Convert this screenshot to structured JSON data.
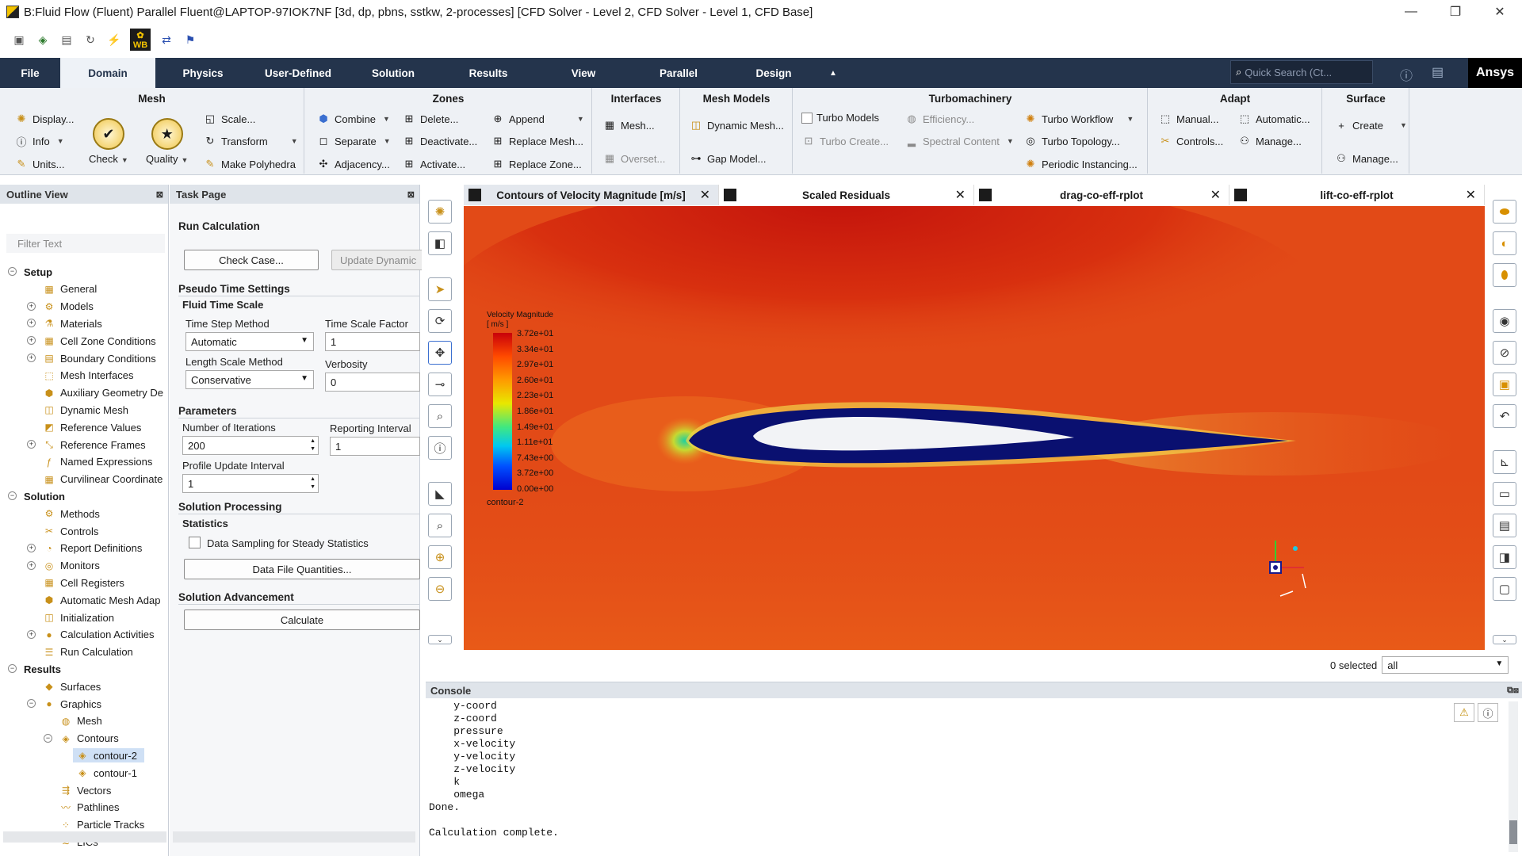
{
  "window": {
    "title": "B:Fluid Flow (Fluent) Parallel Fluent@LAPTOP-97IOK7NF  [3d, dp, pbns, sstkw, 2-processes] [CFD Solver - Level 2, CFD Solver - Level 1, CFD Base]",
    "minimize": "—",
    "restore": "❐",
    "close": "✕"
  },
  "quick_toolbar": {
    "wb_label": "WB"
  },
  "menu": {
    "tabs": [
      "File",
      "Domain",
      "Physics",
      "User-Defined",
      "Solution",
      "Results",
      "View",
      "Parallel",
      "Design"
    ],
    "active": "Domain",
    "search_placeholder": "Quick Search (Ct...",
    "brand": "Ansys"
  },
  "ribbon": {
    "mesh": {
      "title": "Mesh",
      "display": "Display...",
      "info": "Info",
      "units": "Units...",
      "check": "Check",
      "quality": "Quality",
      "scale": "Scale...",
      "transform": "Transform",
      "make_polyhedra": "Make Polyhedra"
    },
    "zones": {
      "title": "Zones",
      "combine": "Combine",
      "separate": "Separate",
      "adjacency": "Adjacency...",
      "delete": "Delete...",
      "deactivate": "Deactivate...",
      "activate": "Activate...",
      "append": "Append",
      "replace_mesh": "Replace Mesh...",
      "replace_zone": "Replace Zone..."
    },
    "interfaces": {
      "title": "Interfaces",
      "mesh": "Mesh...",
      "overset": "Overset..."
    },
    "mesh_models": {
      "title": "Mesh Models",
      "dynamic_mesh": "Dynamic Mesh...",
      "gap_model": "Gap Model..."
    },
    "turbo": {
      "title": "Turbomachinery",
      "turbo_models": "Turbo Models",
      "efficiency": "Efficiency...",
      "turbo_create": "Turbo Create...",
      "spectral_content": "Spectral Content",
      "turbo_workflow": "Turbo Workflow",
      "turbo_topology": "Turbo Topology...",
      "periodic_instancing": "Periodic Instancing..."
    },
    "adapt": {
      "title": "Adapt",
      "manual": "Manual...",
      "automatic": "Automatic...",
      "controls": "Controls...",
      "manage": "Manage..."
    },
    "surface": {
      "title": "Surface",
      "create": "Create",
      "manage": "Manage..."
    }
  },
  "outline": {
    "title": "Outline View",
    "filter_placeholder": "Filter Text",
    "items": [
      {
        "label": "Setup",
        "level": 0,
        "exp": "−",
        "bold": true,
        "icon": ""
      },
      {
        "label": "General",
        "level": 1,
        "exp": "",
        "icon": "▦"
      },
      {
        "label": "Models",
        "level": 1,
        "exp": "+",
        "icon": "⚙"
      },
      {
        "label": "Materials",
        "level": 1,
        "exp": "+",
        "icon": "⚗"
      },
      {
        "label": "Cell Zone Conditions",
        "level": 1,
        "exp": "+",
        "icon": "▦"
      },
      {
        "label": "Boundary Conditions",
        "level": 1,
        "exp": "+",
        "icon": "▤"
      },
      {
        "label": "Mesh Interfaces",
        "level": 1,
        "exp": "",
        "icon": "⬚"
      },
      {
        "label": "Auxiliary Geometry De",
        "level": 1,
        "exp": "",
        "icon": "⬢"
      },
      {
        "label": "Dynamic Mesh",
        "level": 1,
        "exp": "",
        "icon": "◫"
      },
      {
        "label": "Reference Values",
        "level": 1,
        "exp": "",
        "icon": "◩"
      },
      {
        "label": "Reference Frames",
        "level": 1,
        "exp": "+",
        "icon": "⤡"
      },
      {
        "label": "Named Expressions",
        "level": 1,
        "exp": "",
        "icon": "ƒ"
      },
      {
        "label": "Curvilinear Coordinate",
        "level": 1,
        "exp": "",
        "icon": "▦"
      },
      {
        "label": "Solution",
        "level": 0,
        "exp": "−",
        "bold": true,
        "icon": ""
      },
      {
        "label": "Methods",
        "level": 1,
        "exp": "",
        "icon": "⚙"
      },
      {
        "label": "Controls",
        "level": 1,
        "exp": "",
        "icon": "✂"
      },
      {
        "label": "Report Definitions",
        "level": 1,
        "exp": "+",
        "icon": "◔"
      },
      {
        "label": "Monitors",
        "level": 1,
        "exp": "+",
        "icon": "◎"
      },
      {
        "label": "Cell Registers",
        "level": 1,
        "exp": "",
        "icon": "▦"
      },
      {
        "label": "Automatic Mesh Adap",
        "level": 1,
        "exp": "",
        "icon": "⬢"
      },
      {
        "label": "Initialization",
        "level": 1,
        "exp": "",
        "icon": "◫"
      },
      {
        "label": "Calculation Activities",
        "level": 1,
        "exp": "+",
        "icon": "●"
      },
      {
        "label": "Run Calculation",
        "level": 1,
        "exp": "",
        "icon": "☰"
      },
      {
        "label": "Results",
        "level": 0,
        "exp": "−",
        "bold": true,
        "icon": ""
      },
      {
        "label": "Surfaces",
        "level": 1,
        "exp": "",
        "icon": "◆"
      },
      {
        "label": "Graphics",
        "level": 1,
        "exp": "−",
        "icon": "●"
      },
      {
        "label": "Mesh",
        "level": 2,
        "exp": "",
        "icon": "◍"
      },
      {
        "label": "Contours",
        "level": 2,
        "exp": "−",
        "icon": "◈"
      },
      {
        "label": "contour-2",
        "level": 3,
        "exp": "",
        "icon": "◈",
        "selected": true
      },
      {
        "label": "contour-1",
        "level": 3,
        "exp": "",
        "icon": "◈"
      },
      {
        "label": "Vectors",
        "level": 2,
        "exp": "",
        "icon": "⇶"
      },
      {
        "label": "Pathlines",
        "level": 2,
        "exp": "",
        "icon": "〰"
      },
      {
        "label": "Particle Tracks",
        "level": 2,
        "exp": "",
        "icon": "⁘"
      },
      {
        "label": "LICs",
        "level": 2,
        "exp": "",
        "icon": "≋"
      }
    ]
  },
  "task": {
    "title": "Task Page",
    "heading": "Run Calculation",
    "check_case": "Check Case...",
    "update_dynamic": "Update Dynamic",
    "pseudo_time": "Pseudo Time Settings",
    "fluid_time_scale": "Fluid Time Scale",
    "time_step_method_label": "Time Step Method",
    "time_step_method": "Automatic",
    "time_scale_factor_label": "Time Scale Factor",
    "time_scale_factor": "1",
    "length_scale_label": "Length Scale Method",
    "length_scale": "Conservative",
    "verbosity_label": "Verbosity",
    "verbosity": "0",
    "parameters": "Parameters",
    "iterations_label": "Number of Iterations",
    "iterations": "200",
    "reporting_label": "Reporting Interval",
    "reporting": "1",
    "profile_label": "Profile Update Interval",
    "profile": "1",
    "solution_processing": "Solution Processing",
    "statistics": "Statistics",
    "data_sampling": "Data Sampling for Steady Statistics",
    "data_file_quantities": "Data File Quantities...",
    "solution_advancement": "Solution Advancement",
    "calculate": "Calculate"
  },
  "graphics_tabs": [
    {
      "label": "Contours of Velocity Magnitude [m/s]",
      "active": true
    },
    {
      "label": "Scaled Residuals",
      "active": false
    },
    {
      "label": "drag-co-eff-rplot",
      "active": false
    },
    {
      "label": "lift-co-eff-rplot",
      "active": false
    }
  ],
  "legend": {
    "title_line1": "Velocity Magnitude",
    "title_line2": "[ m/s ]",
    "ticks": [
      "3.72e+01",
      "3.34e+01",
      "2.97e+01",
      "2.60e+01",
      "2.23e+01",
      "1.86e+01",
      "1.49e+01",
      "1.11e+01",
      "7.43e+00",
      "3.72e+00",
      "0.00e+00"
    ],
    "contour_name": "contour-2"
  },
  "selection": {
    "count_text": "0 selected",
    "filter_value": "all"
  },
  "console": {
    "title": "Console",
    "text": "    y-coord\n    z-coord\n    pressure\n    x-velocity\n    y-velocity\n    z-velocity\n    k\n    omega\nDone.\n\nCalculation complete."
  },
  "colors": {
    "menubar": "#24344c",
    "accent": "#f2c200",
    "field": "#e24a17"
  }
}
